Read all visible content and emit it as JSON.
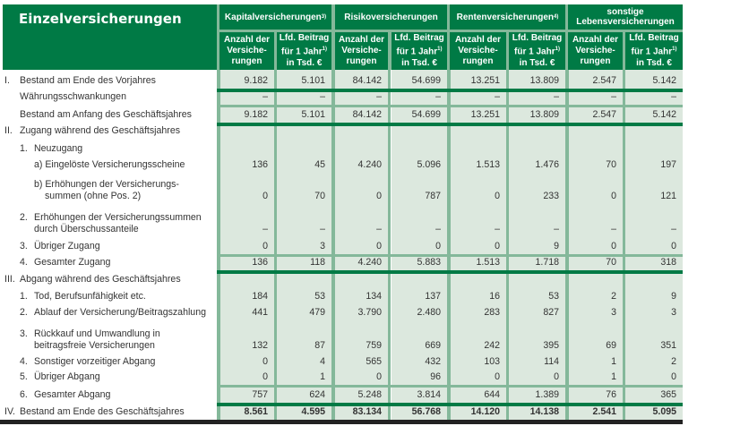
{
  "title": "Einzelversicherungen",
  "groups": [
    {
      "label": "Kapitalversicherungen",
      "sup": "3)"
    },
    {
      "label": "Risikoversicherungen",
      "sup": ""
    },
    {
      "label": "Rentenversicherungen",
      "sup": "4)"
    },
    {
      "label": "sonstige Lebensversicherungen",
      "sup": ""
    }
  ],
  "subheaders": {
    "count": "Anzahl der Versiche-rungen",
    "premium": "Lfd. Beitrag für 1 Jahr",
    "premium_sup": "1)",
    "premium_unit": "in Tsd. €"
  },
  "rows": [
    {
      "num": "I.",
      "label": "Bestand am Ende des Vorjahres",
      "values": [
        "9.182",
        "5.101",
        "84.142",
        "54.699",
        "13.251",
        "13.809",
        "2.547",
        "5.142"
      ]
    },
    {
      "num": "",
      "label": "Währungsschwankungen",
      "values": [
        "–",
        "–",
        "–",
        "–",
        "–",
        "–",
        "–",
        "–"
      ]
    },
    {
      "num": "",
      "label": "Bestand am Anfang des Geschäftsjahres",
      "values": [
        "9.182",
        "5.101",
        "84.142",
        "54.699",
        "13.251",
        "13.809",
        "2.547",
        "5.142"
      ]
    },
    {
      "num": "II.",
      "label": "Zugang während des Geschäftsjahres",
      "values": [
        "",
        "",
        "",
        "",
        "",
        "",
        "",
        ""
      ]
    },
    {
      "num": "1.",
      "label": "Neuzugang",
      "values": [
        "",
        "",
        "",
        "",
        "",
        "",
        "",
        ""
      ]
    },
    {
      "num": "",
      "label": "a) Eingelöste Versicherungsscheine",
      "values": [
        "136",
        "45",
        "4.240",
        "5.096",
        "1.513",
        "1.476",
        "70",
        "197"
      ]
    },
    {
      "num": "",
      "label": "b) Erhöhungen der Versicherungs-",
      "label2": "summen (ohne Pos. 2)",
      "values": [
        "0",
        "70",
        "0",
        "787",
        "0",
        "233",
        "0",
        "121"
      ]
    },
    {
      "num": "2.",
      "label": "Erhöhungen der Versicherungssummen",
      "label2": "durch Überschussanteile",
      "values": [
        "–",
        "–",
        "–",
        "–",
        "–",
        "–",
        "–",
        "–"
      ]
    },
    {
      "num": "3.",
      "label": "Übriger Zugang",
      "values": [
        "0",
        "3",
        "0",
        "0",
        "0",
        "9",
        "0",
        "0"
      ]
    },
    {
      "num": "4.",
      "label": "Gesamter Zugang",
      "values": [
        "136",
        "118",
        "4.240",
        "5.883",
        "1.513",
        "1.718",
        "70",
        "318"
      ]
    },
    {
      "num": "III.",
      "label": "Abgang während des Geschäftsjahres",
      "values": [
        "",
        "",
        "",
        "",
        "",
        "",
        "",
        ""
      ]
    },
    {
      "num": "1.",
      "label": "Tod, Berufsunfähigkeit etc.",
      "values": [
        "184",
        "53",
        "134",
        "137",
        "16",
        "53",
        "2",
        "9"
      ]
    },
    {
      "num": "2.",
      "label": "Ablauf der Versicherung/Beitragszahlung",
      "values": [
        "441",
        "479",
        "3.790",
        "2.480",
        "283",
        "827",
        "3",
        "3"
      ]
    },
    {
      "num": "3.",
      "label": "Rückkauf und Umwandlung in",
      "label2": "beitragsfreie Versicherungen",
      "values": [
        "132",
        "87",
        "759",
        "669",
        "242",
        "395",
        "69",
        "351"
      ]
    },
    {
      "num": "4.",
      "label": "Sonstiger vorzeitiger Abgang",
      "values": [
        "0",
        "4",
        "565",
        "432",
        "103",
        "114",
        "1",
        "2"
      ]
    },
    {
      "num": "5.",
      "label": "Übriger Abgang",
      "values": [
        "0",
        "1",
        "0",
        "96",
        "0",
        "0",
        "1",
        "0"
      ]
    },
    {
      "num": "6.",
      "label": "Gesamter Abgang",
      "values": [
        "757",
        "624",
        "5.248",
        "3.814",
        "644",
        "1.389",
        "76",
        "365"
      ]
    },
    {
      "num": "IV.",
      "label": "Bestand am Ende des Geschäftsjahres",
      "values": [
        "8.561",
        "4.595",
        "83.134",
        "56.768",
        "14.120",
        "14.138",
        "2.541",
        "5.095"
      ]
    }
  ]
}
